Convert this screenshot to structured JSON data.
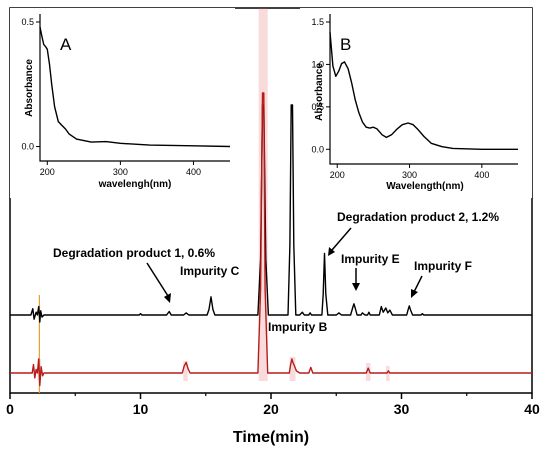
{
  "chart_data": [
    {
      "type": "line",
      "role": "main-chromatogram",
      "xlabel": "Time(min)",
      "ylabel": "",
      "xlim": [
        0,
        40
      ],
      "x_ticks": [
        0,
        10,
        20,
        30,
        40
      ],
      "grid": false,
      "series": [
        {
          "color": "#000000",
          "points": [
            [
              0.0,
              0.0
            ],
            [
              1.6,
              0.0
            ],
            [
              1.75,
              0.9
            ],
            [
              1.85,
              -0.6
            ],
            [
              2.0,
              0.4
            ],
            [
              2.1,
              0.0
            ],
            [
              2.2,
              1.2
            ],
            [
              2.28,
              -1.0
            ],
            [
              2.35,
              0.6
            ],
            [
              2.45,
              -0.3
            ],
            [
              2.6,
              0.0
            ],
            [
              9.9,
              0.0
            ],
            [
              10.0,
              0.2
            ],
            [
              10.1,
              0.0
            ],
            [
              12.0,
              0.0
            ],
            [
              12.2,
              0.5
            ],
            [
              12.35,
              0.0
            ],
            [
              13.3,
              0.0
            ],
            [
              13.5,
              0.3
            ],
            [
              13.7,
              0.0
            ],
            [
              15.1,
              0.0
            ],
            [
              15.25,
              0.8
            ],
            [
              15.4,
              2.6
            ],
            [
              15.55,
              0.8
            ],
            [
              15.7,
              0.0
            ],
            [
              19.0,
              0.0
            ],
            [
              19.2,
              8.0
            ],
            [
              19.35,
              30.0
            ],
            [
              19.45,
              30.0
            ],
            [
              19.6,
              8.0
            ],
            [
              19.8,
              0.0
            ],
            [
              21.3,
              0.0
            ],
            [
              21.45,
              10.0
            ],
            [
              21.55,
              30.0
            ],
            [
              21.65,
              30.0
            ],
            [
              21.75,
              10.0
            ],
            [
              21.9,
              0.0
            ],
            [
              22.2,
              0.0
            ],
            [
              22.4,
              0.4
            ],
            [
              22.55,
              0.0
            ],
            [
              22.9,
              0.0
            ],
            [
              23.0,
              0.3
            ],
            [
              23.1,
              0.0
            ],
            [
              23.9,
              0.0
            ],
            [
              24.0,
              3.0
            ],
            [
              24.1,
              8.8
            ],
            [
              24.2,
              3.0
            ],
            [
              24.35,
              0.0
            ],
            [
              25.0,
              0.0
            ],
            [
              25.2,
              0.3
            ],
            [
              25.4,
              0.0
            ],
            [
              26.1,
              0.0
            ],
            [
              26.25,
              1.0
            ],
            [
              26.35,
              1.6
            ],
            [
              26.45,
              1.0
            ],
            [
              26.6,
              0.0
            ],
            [
              26.9,
              0.0
            ],
            [
              27.0,
              0.3
            ],
            [
              27.2,
              0.0
            ],
            [
              27.4,
              0.0
            ],
            [
              27.5,
              0.4
            ],
            [
              27.6,
              0.0
            ],
            [
              28.3,
              0.0
            ],
            [
              28.45,
              1.2
            ],
            [
              28.6,
              0.4
            ],
            [
              28.8,
              1.0
            ],
            [
              28.95,
              0.3
            ],
            [
              29.1,
              0.7
            ],
            [
              29.3,
              0.0
            ],
            [
              30.4,
              0.0
            ],
            [
              30.5,
              0.7
            ],
            [
              30.6,
              1.3
            ],
            [
              30.7,
              0.7
            ],
            [
              30.85,
              0.0
            ],
            [
              31.5,
              0.0
            ],
            [
              31.6,
              0.2
            ],
            [
              31.7,
              0.0
            ],
            [
              40.0,
              0.0
            ]
          ]
        },
        {
          "color": "#b71c1c",
          "points": [
            [
              0.0,
              0.0
            ],
            [
              1.7,
              0.0
            ],
            [
              1.8,
              1.2
            ],
            [
              1.9,
              -0.7
            ],
            [
              2.0,
              0.5
            ],
            [
              2.1,
              0.0
            ],
            [
              2.2,
              2.0
            ],
            [
              2.28,
              -1.8
            ],
            [
              2.38,
              0.9
            ],
            [
              2.5,
              -0.4
            ],
            [
              2.6,
              0.0
            ],
            [
              13.2,
              0.0
            ],
            [
              13.35,
              1.0
            ],
            [
              13.5,
              1.5
            ],
            [
              13.65,
              0.6
            ],
            [
              13.8,
              0.0
            ],
            [
              19.0,
              0.0
            ],
            [
              19.2,
              12.0
            ],
            [
              19.35,
              40.0
            ],
            [
              19.45,
              40.0
            ],
            [
              19.55,
              12.0
            ],
            [
              19.75,
              0.0
            ],
            [
              21.4,
              0.0
            ],
            [
              21.5,
              1.2
            ],
            [
              21.6,
              2.0
            ],
            [
              21.7,
              1.4
            ],
            [
              21.8,
              1.0
            ],
            [
              21.95,
              0.3
            ],
            [
              22.2,
              0.0
            ],
            [
              22.9,
              0.0
            ],
            [
              23.05,
              0.8
            ],
            [
              23.2,
              0.0
            ],
            [
              27.3,
              0.0
            ],
            [
              27.45,
              0.7
            ],
            [
              27.6,
              0.0
            ],
            [
              28.9,
              0.0
            ],
            [
              29.0,
              0.3
            ],
            [
              29.1,
              0.0
            ],
            [
              40.0,
              0.0
            ]
          ]
        }
      ],
      "annotations": [
        {
          "text": "Degradation product 1, 0.6%",
          "x": 12.3
        },
        {
          "text": "Impurity C",
          "x": 15.4
        },
        {
          "text": "Impurity B",
          "x": 21.6
        },
        {
          "text": "Degradation product 2, 1.2%",
          "x": 24.1
        },
        {
          "text": "Impurity E",
          "x": 26.35
        },
        {
          "text": "Impurity F",
          "x": 30.6
        }
      ]
    },
    {
      "type": "line",
      "role": "inset-A",
      "label": "A",
      "xlabel": "wavelengh(nm)",
      "ylabel": "Absorbance",
      "xlim": [
        190,
        450
      ],
      "ylim": [
        -0.05,
        0.5
      ],
      "x_ticks": [
        200,
        300,
        400
      ],
      "y_ticks": [
        0.0,
        0.5
      ],
      "series": [
        {
          "color": "#000000",
          "points": [
            [
              190,
              0.48
            ],
            [
              192,
              0.45
            ],
            [
              195,
              0.41
            ],
            [
              198,
              0.4
            ],
            [
              200,
              0.39
            ],
            [
              203,
              0.33
            ],
            [
              206,
              0.25
            ],
            [
              210,
              0.16
            ],
            [
              215,
              0.1
            ],
            [
              220,
              0.085
            ],
            [
              225,
              0.07
            ],
            [
              230,
              0.05
            ],
            [
              240,
              0.03
            ],
            [
              260,
              0.018
            ],
            [
              280,
              0.02
            ],
            [
              300,
              0.013
            ],
            [
              340,
              0.006
            ],
            [
              400,
              0.003
            ],
            [
              450,
              0.0
            ]
          ]
        }
      ]
    },
    {
      "type": "line",
      "role": "inset-B",
      "label": "B",
      "xlabel": "Wavelength(nm)",
      "ylabel": "Absorbance",
      "xlim": [
        190,
        450
      ],
      "ylim": [
        -0.15,
        1.5
      ],
      "x_ticks": [
        200,
        300,
        400
      ],
      "y_ticks": [
        0.0,
        0.5,
        1.0,
        1.5
      ],
      "series": [
        {
          "color": "#000000",
          "points": [
            [
              190,
              1.38
            ],
            [
              194,
              0.98
            ],
            [
              198,
              0.86
            ],
            [
              202,
              0.92
            ],
            [
              206,
              1.01
            ],
            [
              210,
              1.03
            ],
            [
              215,
              0.95
            ],
            [
              220,
              0.78
            ],
            [
              225,
              0.58
            ],
            [
              230,
              0.43
            ],
            [
              235,
              0.32
            ],
            [
              240,
              0.26
            ],
            [
              245,
              0.25
            ],
            [
              250,
              0.26
            ],
            [
              255,
              0.24
            ],
            [
              262,
              0.17
            ],
            [
              268,
              0.14
            ],
            [
              275,
              0.17
            ],
            [
              283,
              0.24
            ],
            [
              290,
              0.29
            ],
            [
              298,
              0.31
            ],
            [
              305,
              0.29
            ],
            [
              312,
              0.23
            ],
            [
              320,
              0.15
            ],
            [
              330,
              0.07
            ],
            [
              345,
              0.03
            ],
            [
              360,
              0.01
            ],
            [
              400,
              0.0
            ],
            [
              450,
              0.0
            ]
          ]
        }
      ]
    }
  ]
}
